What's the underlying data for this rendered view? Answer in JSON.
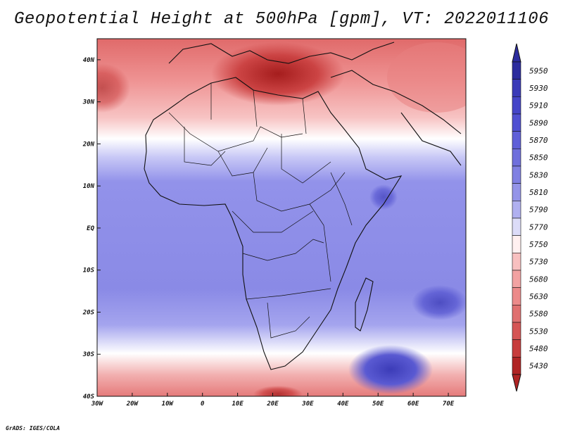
{
  "title": "Geopotential Height at 500hPa [gpm], VT: 2022011106",
  "credit": "GrADS: IGES/COLA",
  "map": {
    "lat_ticks": [
      "40N",
      "30N",
      "20N",
      "10N",
      "EQ",
      "10S",
      "20S",
      "30S",
      "40S"
    ],
    "lon_ticks": [
      "30W",
      "20W",
      "10W",
      "0",
      "10E",
      "20E",
      "30E",
      "40E",
      "50E",
      "60E",
      "70E"
    ],
    "extent": {
      "lon_min": -30,
      "lon_max": 75,
      "lat_min": -40,
      "lat_max": 45
    }
  },
  "legend": {
    "levels": [
      "5950",
      "5930",
      "5910",
      "5890",
      "5870",
      "5850",
      "5830",
      "5810",
      "5790",
      "5770",
      "5750",
      "5730",
      "5680",
      "5630",
      "5580",
      "5530",
      "5480",
      "5430"
    ],
    "colors": [
      "#2c2c9e",
      "#3a3ab8",
      "#4545c8",
      "#5050d2",
      "#5f5fd8",
      "#6f6fdc",
      "#8080e2",
      "#9494e8",
      "#b0b0f0",
      "#dcdcf8",
      "#fff0f0",
      "#f8c0c0",
      "#f2a2a2",
      "#ec8a8a",
      "#e07070",
      "#d55555",
      "#c73c3c",
      "#b02424"
    ]
  }
}
